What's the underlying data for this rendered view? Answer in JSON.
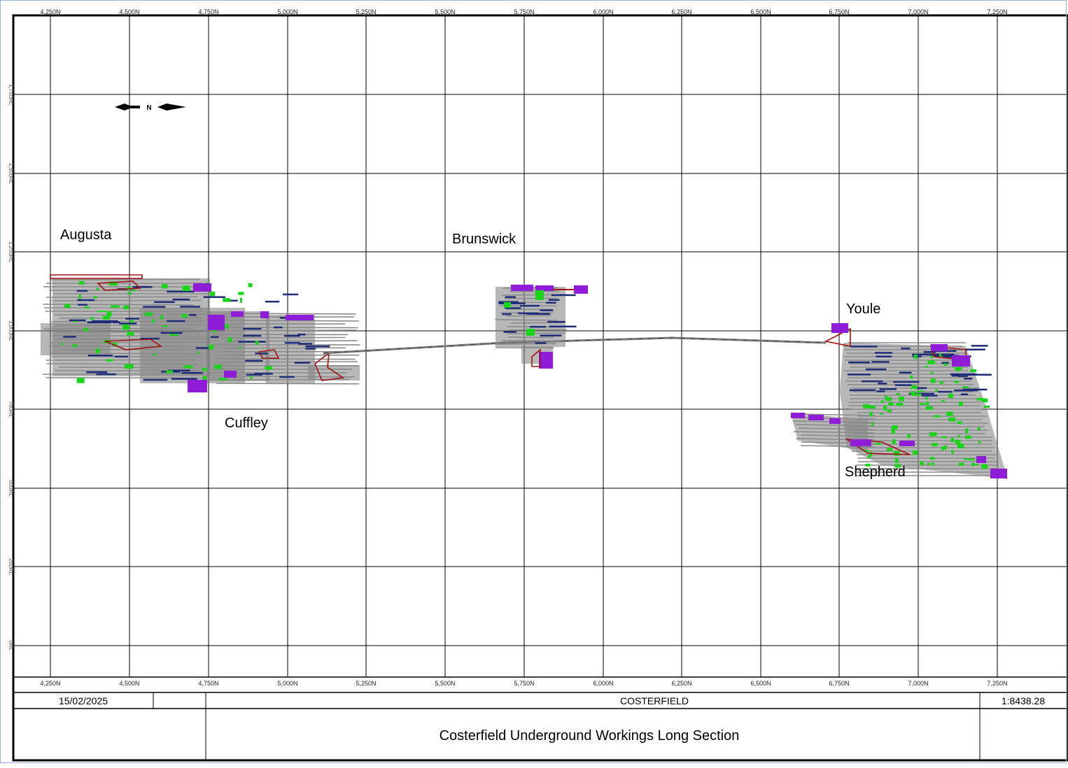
{
  "grid": {
    "northing_labels": [
      "4,250N",
      "4,500N",
      "4,750N",
      "5,000N",
      "5,250N",
      "5,500N",
      "5,750N",
      "6,000N",
      "6,250N",
      "6,500N",
      "6,750N",
      "7,000N",
      "7,250N"
    ],
    "elevation_labels": [
      "1,750RL",
      "1,500RL",
      "1,250RL",
      "1,000RL",
      "750RL",
      "500RL",
      "250RL",
      "0RL"
    ]
  },
  "north_arrow": {
    "symbol": "N"
  },
  "areas": {
    "augusta": "Augusta",
    "brunswick": "Brunswick",
    "youle": "Youle",
    "cuffley": "Cuffley",
    "shepherd": "Shepherd"
  },
  "colors": {
    "development": "#7d7d7d",
    "level_fill": "#1c2c78",
    "ore": "#19d419",
    "stope": "#8f1dd8",
    "outline": "#a11010",
    "grid": "#000000"
  },
  "title_block": {
    "date": "15/02/2025",
    "project": "COSTERFIELD",
    "scale": "1:8438.28",
    "title": "Costerfield Underground Workings Long Section"
  }
}
